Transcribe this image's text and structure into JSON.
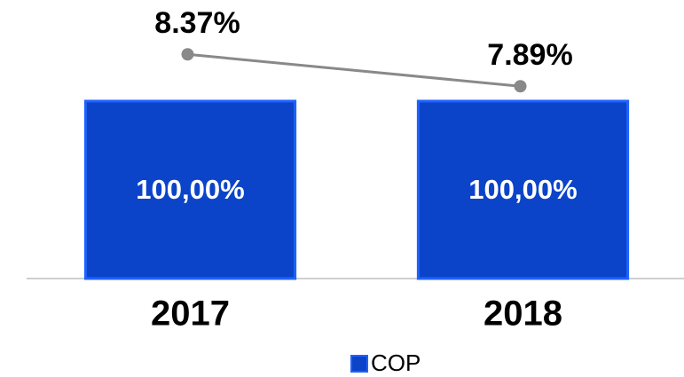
{
  "chart_data": {
    "type": "bar",
    "categories": [
      "2017",
      "2018"
    ],
    "series": [
      {
        "name": "COP",
        "type": "bar",
        "color": "#0b44c9",
        "values": [
          100,
          100
        ],
        "value_labels": [
          "100,00%",
          "100,00%"
        ]
      },
      {
        "type": "line",
        "axis": "y2",
        "color": "#898989",
        "values": [
          8.37,
          7.89
        ],
        "value_labels": [
          "8.37%",
          "7.89%"
        ]
      }
    ],
    "ylim": [
      0,
      150
    ],
    "y2lim": [
      5,
      9
    ],
    "legend": "bottom"
  }
}
